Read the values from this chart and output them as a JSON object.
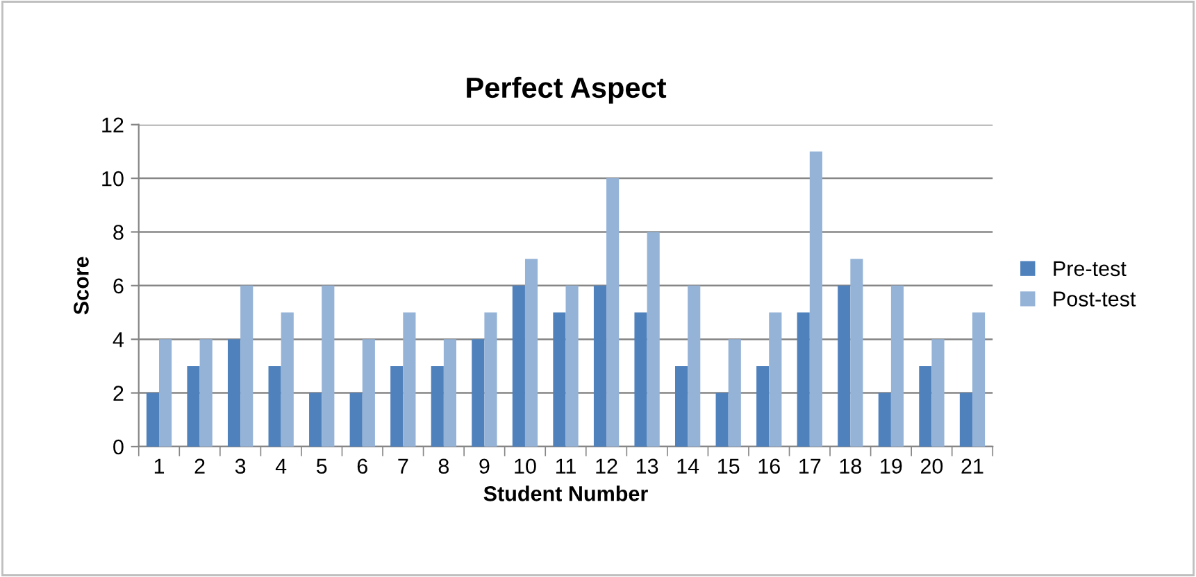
{
  "chart_data": {
    "type": "bar",
    "title": "Perfect Aspect",
    "xlabel": "Student Number",
    "ylabel": "Score",
    "categories": [
      "1",
      "2",
      "3",
      "4",
      "5",
      "6",
      "7",
      "8",
      "9",
      "10",
      "11",
      "12",
      "13",
      "14",
      "15",
      "16",
      "17",
      "18",
      "19",
      "20",
      "21"
    ],
    "series": [
      {
        "name": "Pre-test",
        "color": "#4f81bd",
        "values": [
          2,
          3,
          4,
          3,
          2,
          2,
          3,
          3,
          4,
          6,
          5,
          6,
          5,
          3,
          2,
          3,
          5,
          6,
          2,
          3,
          2
        ]
      },
      {
        "name": "Post-test",
        "color": "#95b3d7",
        "values": [
          4,
          4,
          6,
          5,
          6,
          4,
          5,
          4,
          5,
          7,
          6,
          10,
          8,
          6,
          4,
          5,
          11,
          7,
          6,
          4,
          5
        ]
      }
    ],
    "ylim": [
      0,
      12
    ],
    "yticks": [
      0,
      2,
      4,
      6,
      8,
      10,
      12
    ],
    "grid": "y",
    "legend": "right"
  }
}
